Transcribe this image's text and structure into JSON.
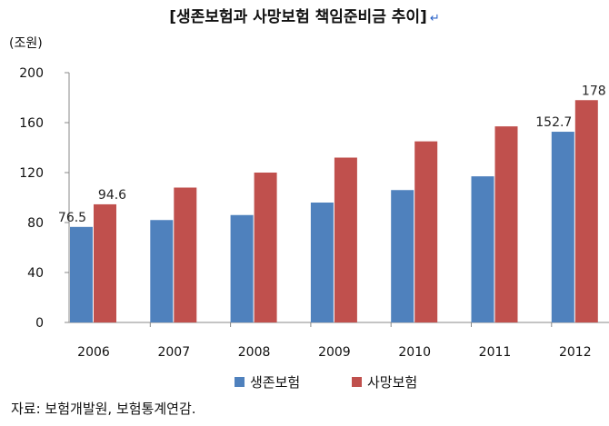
{
  "chart_data": {
    "type": "bar",
    "title": "[생존보험과 사망보험 책임준비금 추이]",
    "title_mark": "↵",
    "ylabel": "(조원)",
    "xlabel": "",
    "ylim": [
      0,
      200
    ],
    "yticks": [
      0,
      40,
      80,
      120,
      160,
      200
    ],
    "categories": [
      "2006",
      "2007",
      "2008",
      "2009",
      "2010",
      "2011",
      "2012"
    ],
    "series": [
      {
        "name": "생존보험",
        "color": "#4f81bd",
        "values": [
          76.5,
          82,
          86,
          96,
          106,
          117,
          152.7
        ],
        "labels": [
          "76.5",
          "",
          "",
          "",
          "",
          "",
          "152.7"
        ]
      },
      {
        "name": "사망보험",
        "color": "#c0504d",
        "values": [
          94.6,
          108,
          120,
          132,
          145,
          157,
          178
        ],
        "labels": [
          "94.6",
          "",
          "",
          "",
          "",
          "",
          "178"
        ]
      }
    ],
    "grid": false,
    "legend_position": "bottom"
  },
  "source": "자료:  보험개발원, 보험통계연감."
}
